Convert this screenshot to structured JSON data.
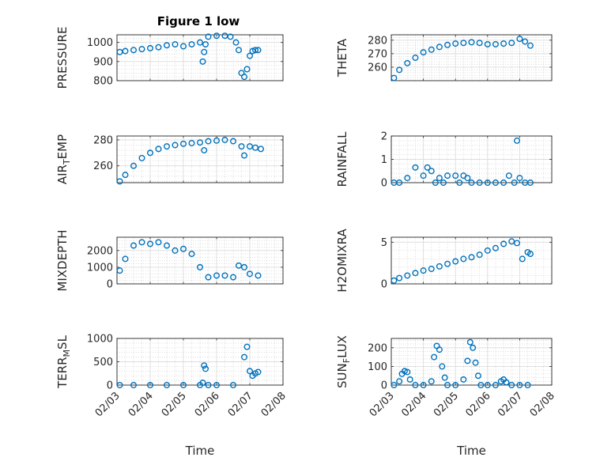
{
  "figure": {
    "title": "Figure 1 low",
    "marker_color": "#0072bd"
  },
  "chart_data": [
    {
      "type": "scatter",
      "ylabel": "PRESSURE",
      "ylim": [
        800,
        1040
      ],
      "yticks": [
        800,
        900,
        1000
      ],
      "xlabel": "",
      "xticks": [],
      "grid": true,
      "x": [
        "02/03 02:00",
        "02/03 06:00",
        "02/03 12:00",
        "02/03 18:00",
        "02/04 00:00",
        "02/04 06:00",
        "02/04 12:00",
        "02/04 18:00",
        "02/05 00:00",
        "02/05 06:00",
        "02/05 12:00",
        "02/05 14:00",
        "02/05 15:00",
        "02/05 16:00",
        "02/05 18:00",
        "02/06 00:00",
        "02/06 06:00",
        "02/06 10:00",
        "02/06 14:00",
        "02/06 16:00",
        "02/06 18:00",
        "02/06 20:00",
        "02/06 22:00",
        "02/07 00:00",
        "02/07 02:00",
        "02/07 04:00",
        "02/07 06:00"
      ],
      "values": [
        950,
        955,
        960,
        965,
        970,
        975,
        985,
        990,
        980,
        990,
        1000,
        900,
        950,
        990,
        1030,
        1035,
        1035,
        1030,
        1000,
        960,
        840,
        820,
        860,
        930,
        955,
        960,
        960
      ]
    },
    {
      "type": "scatter",
      "ylabel": "THETA",
      "ylim": [
        250,
        284
      ],
      "yticks": [
        260,
        270,
        280
      ],
      "xlabel": "",
      "xticks": [],
      "grid": true,
      "x": [
        "02/03 02:00",
        "02/03 06:00",
        "02/03 12:00",
        "02/03 18:00",
        "02/04 00:00",
        "02/04 06:00",
        "02/04 12:00",
        "02/04 18:00",
        "02/05 00:00",
        "02/05 06:00",
        "02/05 12:00",
        "02/05 18:00",
        "02/06 00:00",
        "02/06 06:00",
        "02/06 12:00",
        "02/06 18:00",
        "02/07 00:00",
        "02/07 04:00",
        "02/07 08:00"
      ],
      "values": [
        252,
        258,
        263,
        267,
        271,
        273,
        275,
        276.5,
        277.5,
        278,
        278.5,
        278,
        277,
        277,
        277.5,
        278,
        281,
        279,
        276
      ]
    },
    {
      "type": "scatter",
      "ylabel": "AIR_TEMP",
      "ylim": [
        247,
        283
      ],
      "yticks": [
        260,
        280
      ],
      "xlabel": "",
      "xticks": [],
      "grid": true,
      "x": [
        "02/03 02:00",
        "02/03 06:00",
        "02/03 12:00",
        "02/03 18:00",
        "02/04 00:00",
        "02/04 06:00",
        "02/04 12:00",
        "02/04 18:00",
        "02/05 00:00",
        "02/05 06:00",
        "02/05 12:00",
        "02/05 15:00",
        "02/05 18:00",
        "02/06 00:00",
        "02/06 06:00",
        "02/06 12:00",
        "02/06 18:00",
        "02/06 20:00",
        "02/07 00:00",
        "02/07 04:00",
        "02/07 08:00"
      ],
      "values": [
        248,
        253,
        260,
        266,
        270,
        273,
        275,
        276,
        277,
        277.5,
        278,
        272,
        279,
        279.5,
        280,
        279,
        275,
        268,
        275,
        274,
        273
      ]
    },
    {
      "type": "scatter",
      "ylabel": "RAINFALL",
      "ylim": [
        0,
        2
      ],
      "yticks": [
        0,
        1,
        2
      ],
      "xlabel": "",
      "xticks": [],
      "grid": true,
      "x": [
        "02/03 02:00",
        "02/03 06:00",
        "02/03 12:00",
        "02/03 18:00",
        "02/04 00:00",
        "02/04 03:00",
        "02/04 06:00",
        "02/04 09:00",
        "02/04 12:00",
        "02/04 15:00",
        "02/04 18:00",
        "02/05 00:00",
        "02/05 03:00",
        "02/05 06:00",
        "02/05 09:00",
        "02/05 12:00",
        "02/05 18:00",
        "02/06 00:00",
        "02/06 06:00",
        "02/06 12:00",
        "02/06 16:00",
        "02/06 20:00",
        "02/06 22:00",
        "02/07 00:00",
        "02/07 04:00",
        "02/07 08:00"
      ],
      "values": [
        0,
        0,
        0.2,
        0.65,
        0.3,
        0.65,
        0.5,
        0,
        0.2,
        0,
        0.3,
        0.3,
        0,
        0.3,
        0.2,
        0,
        0,
        0,
        0,
        0,
        0.3,
        0,
        1.8,
        0.2,
        0,
        0
      ]
    },
    {
      "type": "scatter",
      "ylabel": "MIXDEPTH",
      "ylim": [
        0,
        2800
      ],
      "yticks": [
        0,
        1000,
        2000
      ],
      "xlabel": "",
      "xticks": [],
      "grid": true,
      "x": [
        "02/03 02:00",
        "02/03 06:00",
        "02/03 12:00",
        "02/03 18:00",
        "02/04 00:00",
        "02/04 06:00",
        "02/04 12:00",
        "02/04 18:00",
        "02/05 00:00",
        "02/05 06:00",
        "02/05 12:00",
        "02/05 18:00",
        "02/06 00:00",
        "02/06 06:00",
        "02/06 12:00",
        "02/06 16:00",
        "02/06 20:00",
        "02/07 00:00",
        "02/07 06:00"
      ],
      "values": [
        800,
        1500,
        2300,
        2500,
        2400,
        2500,
        2300,
        2000,
        2100,
        1800,
        1000,
        400,
        500,
        500,
        400,
        1100,
        1000,
        600,
        500
      ]
    },
    {
      "type": "scatter",
      "ylabel": "H2OMIXRA",
      "ylim": [
        0,
        5.6
      ],
      "yticks": [
        0,
        5
      ],
      "xlabel": "",
      "xticks": [],
      "grid": true,
      "x": [
        "02/03 02:00",
        "02/03 06:00",
        "02/03 12:00",
        "02/03 18:00",
        "02/04 00:00",
        "02/04 06:00",
        "02/04 12:00",
        "02/04 18:00",
        "02/05 00:00",
        "02/05 06:00",
        "02/05 12:00",
        "02/05 18:00",
        "02/06 00:00",
        "02/06 06:00",
        "02/06 12:00",
        "02/06 18:00",
        "02/06 22:00",
        "02/07 02:00",
        "02/07 06:00",
        "02/07 08:00"
      ],
      "values": [
        0.4,
        0.7,
        1.0,
        1.3,
        1.6,
        1.8,
        2.1,
        2.4,
        2.7,
        3.0,
        3.2,
        3.5,
        4.0,
        4.3,
        4.8,
        5.1,
        4.9,
        3.0,
        3.8,
        3.6
      ]
    },
    {
      "type": "scatter",
      "ylabel": "TERR_MSL",
      "ylim": [
        0,
        1000
      ],
      "yticks": [
        0,
        500,
        1000
      ],
      "xlabel": "Time",
      "xticks": [
        "02/03",
        "02/04",
        "02/05",
        "02/06",
        "02/07",
        "02/08"
      ],
      "grid": true,
      "x": [
        "02/03 02:00",
        "02/03 12:00",
        "02/04 00:00",
        "02/04 12:00",
        "02/05 00:00",
        "02/05 12:00",
        "02/05 14:00",
        "02/05 15:00",
        "02/05 16:00",
        "02/05 18:00",
        "02/06 00:00",
        "02/06 12:00",
        "02/06 20:00",
        "02/06 22:00",
        "02/07 00:00",
        "02/07 02:00",
        "02/07 04:00",
        "02/07 06:00"
      ],
      "values": [
        0,
        0,
        0,
        0,
        0,
        0,
        50,
        420,
        350,
        0,
        0,
        0,
        600,
        820,
        300,
        200,
        250,
        280
      ]
    },
    {
      "type": "scatter",
      "ylabel": "SUN_FLUX",
      "ylim": [
        0,
        250
      ],
      "yticks": [
        0,
        100,
        200
      ],
      "xlabel": "Time",
      "xticks": [
        "02/03",
        "02/04",
        "02/05",
        "02/06",
        "02/07",
        "02/08"
      ],
      "grid": true,
      "x": [
        "02/03 02:00",
        "02/03 06:00",
        "02/03 08:00",
        "02/03 10:00",
        "02/03 12:00",
        "02/03 14:00",
        "02/03 18:00",
        "02/04 00:00",
        "02/04 06:00",
        "02/04 08:00",
        "02/04 10:00",
        "02/04 12:00",
        "02/04 14:00",
        "02/04 16:00",
        "02/04 18:00",
        "02/05 00:00",
        "02/05 06:00",
        "02/05 09:00",
        "02/05 11:00",
        "02/05 13:00",
        "02/05 15:00",
        "02/05 17:00",
        "02/05 19:00",
        "02/06 00:00",
        "02/06 06:00",
        "02/06 10:00",
        "02/06 12:00",
        "02/06 14:00",
        "02/06 18:00",
        "02/07 00:00",
        "02/07 06:00"
      ],
      "values": [
        0,
        20,
        60,
        75,
        70,
        30,
        0,
        0,
        20,
        150,
        210,
        190,
        100,
        40,
        0,
        0,
        30,
        130,
        230,
        200,
        120,
        50,
        0,
        0,
        0,
        20,
        30,
        15,
        0,
        0,
        0
      ]
    }
  ]
}
